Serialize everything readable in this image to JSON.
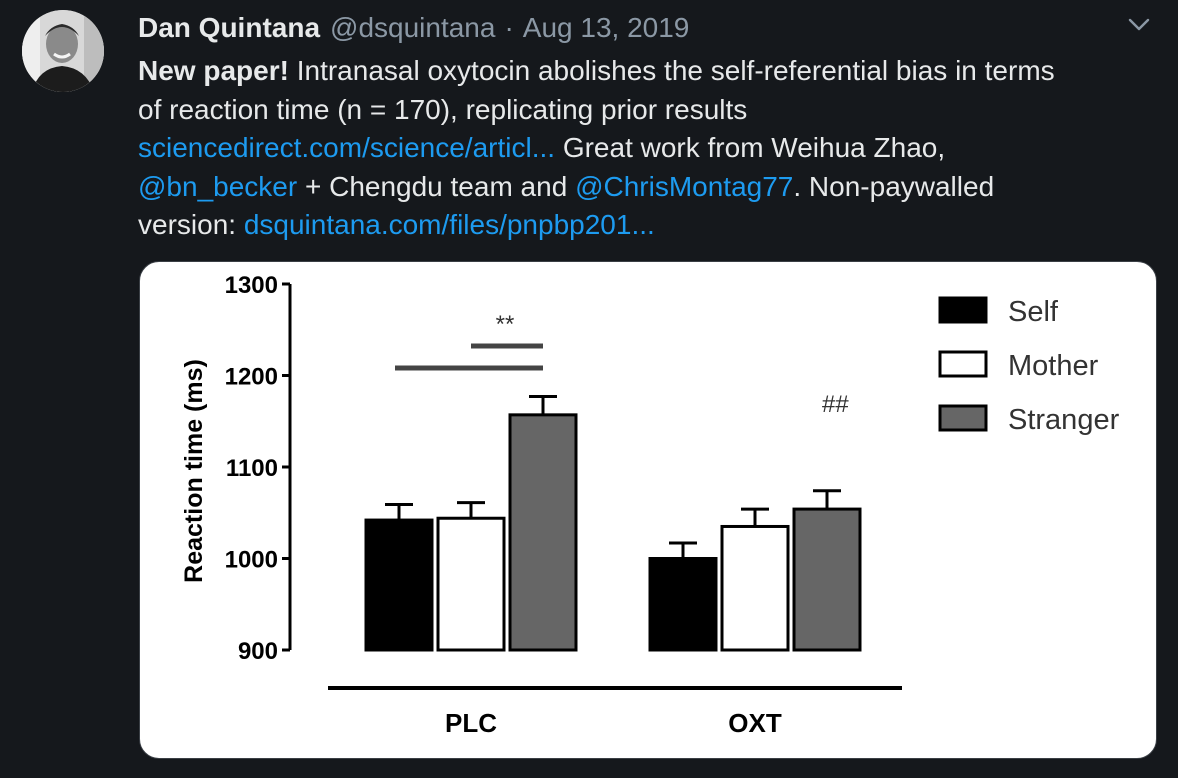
{
  "tweet": {
    "author_name": "Dan Quintana",
    "handle": "@dsquintana",
    "separator": "·",
    "date": "Aug 13, 2019",
    "lines": [
      [
        {
          "t": "New paper!",
          "k": "bold"
        },
        {
          "t": " Intranasal oxytocin abolishes the self-referential bias in terms",
          "k": "text"
        }
      ],
      [
        {
          "t": "of reaction time (n = 170), replicating prior results",
          "k": "text"
        }
      ],
      [
        {
          "t": "sciencedirect.com/science/articl...",
          "k": "link"
        },
        {
          "t": " Great work from Weihua Zhao,",
          "k": "text"
        }
      ],
      [
        {
          "t": "@bn_becker",
          "k": "link"
        },
        {
          "t": " + Chengdu team and ",
          "k": "text"
        },
        {
          "t": "@ChrisMontag77",
          "k": "link"
        },
        {
          "t": ". Non-paywalled",
          "k": "text"
        }
      ],
      [
        {
          "t": "version: ",
          "k": "text"
        },
        {
          "t": "dsquintana.com/files/pnpbp201...",
          "k": "link"
        }
      ]
    ]
  },
  "icons": {
    "avatar": "avatar-photo",
    "menu": "chevron-down-icon"
  },
  "colors": {
    "background": "#15181c",
    "text": "#e7e9ea",
    "muted": "#8b98a5",
    "link": "#1d9bf0",
    "self": "#000000",
    "mother": "#ffffff",
    "stranger": "#666666"
  },
  "chart_data": {
    "type": "bar",
    "categories": [
      "PLC",
      "OXT"
    ],
    "series": [
      {
        "name": "Self",
        "color": "#000000",
        "values": [
          1042,
          1000
        ],
        "errors": [
          17,
          17
        ]
      },
      {
        "name": "Mother",
        "color": "#ffffff",
        "values": [
          1044,
          1035
        ],
        "errors": [
          17,
          19
        ]
      },
      {
        "name": "Stranger",
        "color": "#666666",
        "values": [
          1157,
          1054
        ],
        "errors": [
          20,
          20
        ]
      }
    ],
    "ylabel": "Reaction time (ms)",
    "xlabel": "",
    "ylim": [
      900,
      1300
    ],
    "yticks": [
      900,
      1000,
      1100,
      1200,
      1300
    ],
    "legend_position": "top-right",
    "annotations": [
      {
        "text": "**",
        "category": "PLC",
        "comparison": "Mother vs Stranger"
      },
      {
        "text": "",
        "category": "PLC",
        "comparison": "Self vs Stranger"
      },
      {
        "text": "##",
        "category": "OXT"
      }
    ]
  }
}
